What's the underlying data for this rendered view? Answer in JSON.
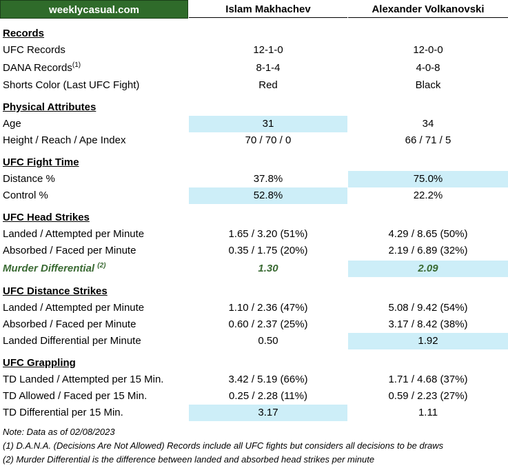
{
  "brand": "weeklycasual.com",
  "fighters": [
    "Islam Makhachev",
    "Alexander Volkanovski"
  ],
  "sections": [
    {
      "title": "Records",
      "rows": [
        {
          "label": "UFC Records",
          "v1": "12-1-0",
          "v2": "12-0-0"
        },
        {
          "label": "DANA Records",
          "sup": "(1)",
          "v1": "8-1-4",
          "v2": "4-0-8"
        },
        {
          "label": "Shorts Color (Last UFC Fight)",
          "v1": "Red",
          "v2": "Black"
        }
      ]
    },
    {
      "title": "Physical Attributes",
      "rows": [
        {
          "label": "Age",
          "v1": "31",
          "v2": "34"
        },
        {
          "label": "Height / Reach / Ape Index",
          "v1": "70 / 70 / 0",
          "v2": "66 / 71 / 5"
        }
      ]
    },
    {
      "title": "UFC Fight Time",
      "rows": [
        {
          "label": "Distance %",
          "v1": "37.8%",
          "v2": "75.0%"
        },
        {
          "label": "Control %",
          "v1": "52.8%",
          "v2": "22.2%"
        }
      ]
    },
    {
      "title": "UFC Head Strikes",
      "rows": [
        {
          "label": "Landed / Attempted per Minute",
          "v1": "1.65 / 3.20 (51%)",
          "v2": "4.29 / 8.65 (50%)"
        },
        {
          "label": "Absorbed / Faced per Minute",
          "v1": "0.35 / 1.75 (20%)",
          "v2": "2.19 / 6.89 (32%)"
        },
        {
          "label": "Murder Differential",
          "sup": "(2)",
          "v1": "1.30",
          "v2": "2.09"
        }
      ]
    },
    {
      "title": "UFC Distance Strikes",
      "rows": [
        {
          "label": "Landed / Attempted per Minute",
          "v1": "1.10 / 2.36 (47%)",
          "v2": "5.08 / 9.42 (54%)"
        },
        {
          "label": "Absorbed / Faced per Minute",
          "v1": "0.60 / 2.37 (25%)",
          "v2": "3.17 / 8.42 (38%)"
        },
        {
          "label": "Landed Differential per Minute",
          "v1": "0.50",
          "v2": "1.92"
        }
      ]
    },
    {
      "title": "UFC Grappling",
      "rows": [
        {
          "label": "TD Landed / Attempted per 15 Min.",
          "v1": "3.42 / 5.19 (66%)",
          "v2": "1.71 / 4.68 (37%)"
        },
        {
          "label": "TD Allowed / Faced per 15 Min.",
          "v1": "0.25 / 2.28 (11%)",
          "v2": "0.59 / 2.23 (27%)"
        },
        {
          "label": "TD Differential per 15 Min.",
          "v1": "3.17",
          "v2": "1.11"
        }
      ]
    }
  ],
  "notes": [
    "Note: Data as of 02/08/2023",
    "(1) D.A.N.A. (Decisions Are Not Allowed) Records include all UFC fights but considers all decisions to be draws",
    "(2) Murder Differential is the difference between landed and absorbed head strikes per minute"
  ],
  "colors": {
    "brand_bg": "#2f6b2a",
    "highlight": "#cdeef8",
    "murder_text": "#3a6a33"
  }
}
